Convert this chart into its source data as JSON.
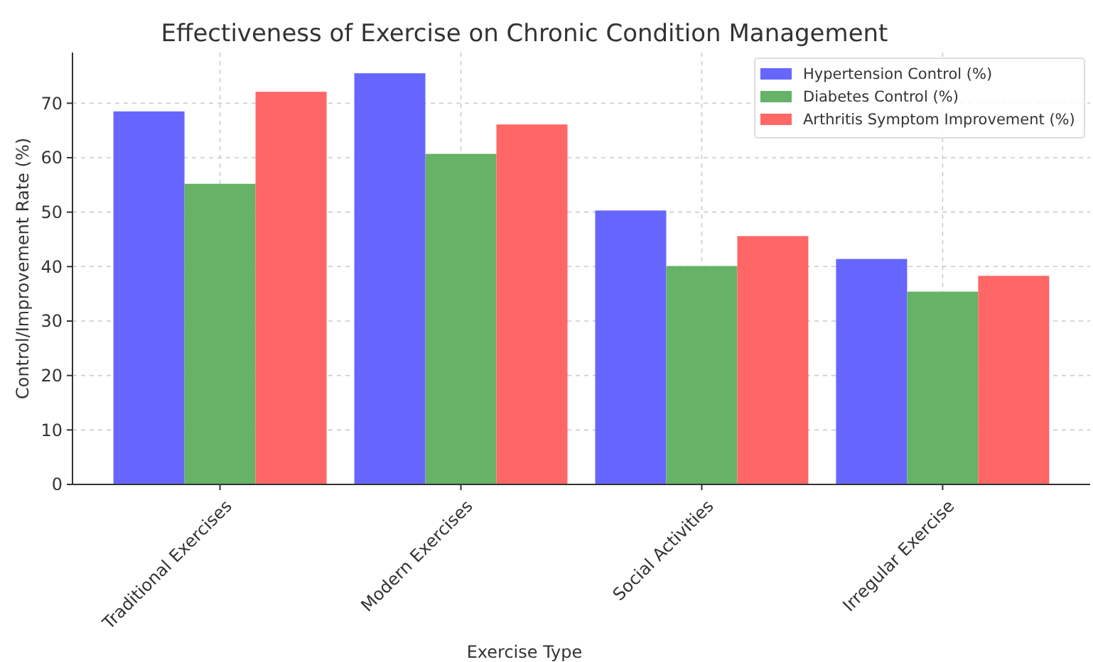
{
  "chart_data": {
    "type": "bar",
    "title": "Effectiveness of Exercise on Chronic Condition Management",
    "xlabel": "Exercise Type",
    "ylabel": "Control/Improvement Rate (%)",
    "categories": [
      "Traditional Exercises",
      "Modern Exercises",
      "Social Activities",
      "Irregular Exercise"
    ],
    "series": [
      {
        "name": "Hypertension Control (%)",
        "color": "#6666ff",
        "values": [
          68.5,
          75.5,
          50.3,
          41.4
        ]
      },
      {
        "name": "Diabetes Control (%)",
        "color": "#66b266",
        "values": [
          55.2,
          60.7,
          40.1,
          35.4
        ]
      },
      {
        "name": "Arthritis Symptom Improvement (%)",
        "color": "#ff6666",
        "values": [
          72.1,
          66.1,
          45.6,
          38.3
        ]
      }
    ],
    "ylim": [
      0,
      79.3
    ],
    "yticks": [
      0,
      10,
      20,
      30,
      40,
      50,
      60,
      70
    ],
    "grid": true,
    "legend": "top right"
  }
}
